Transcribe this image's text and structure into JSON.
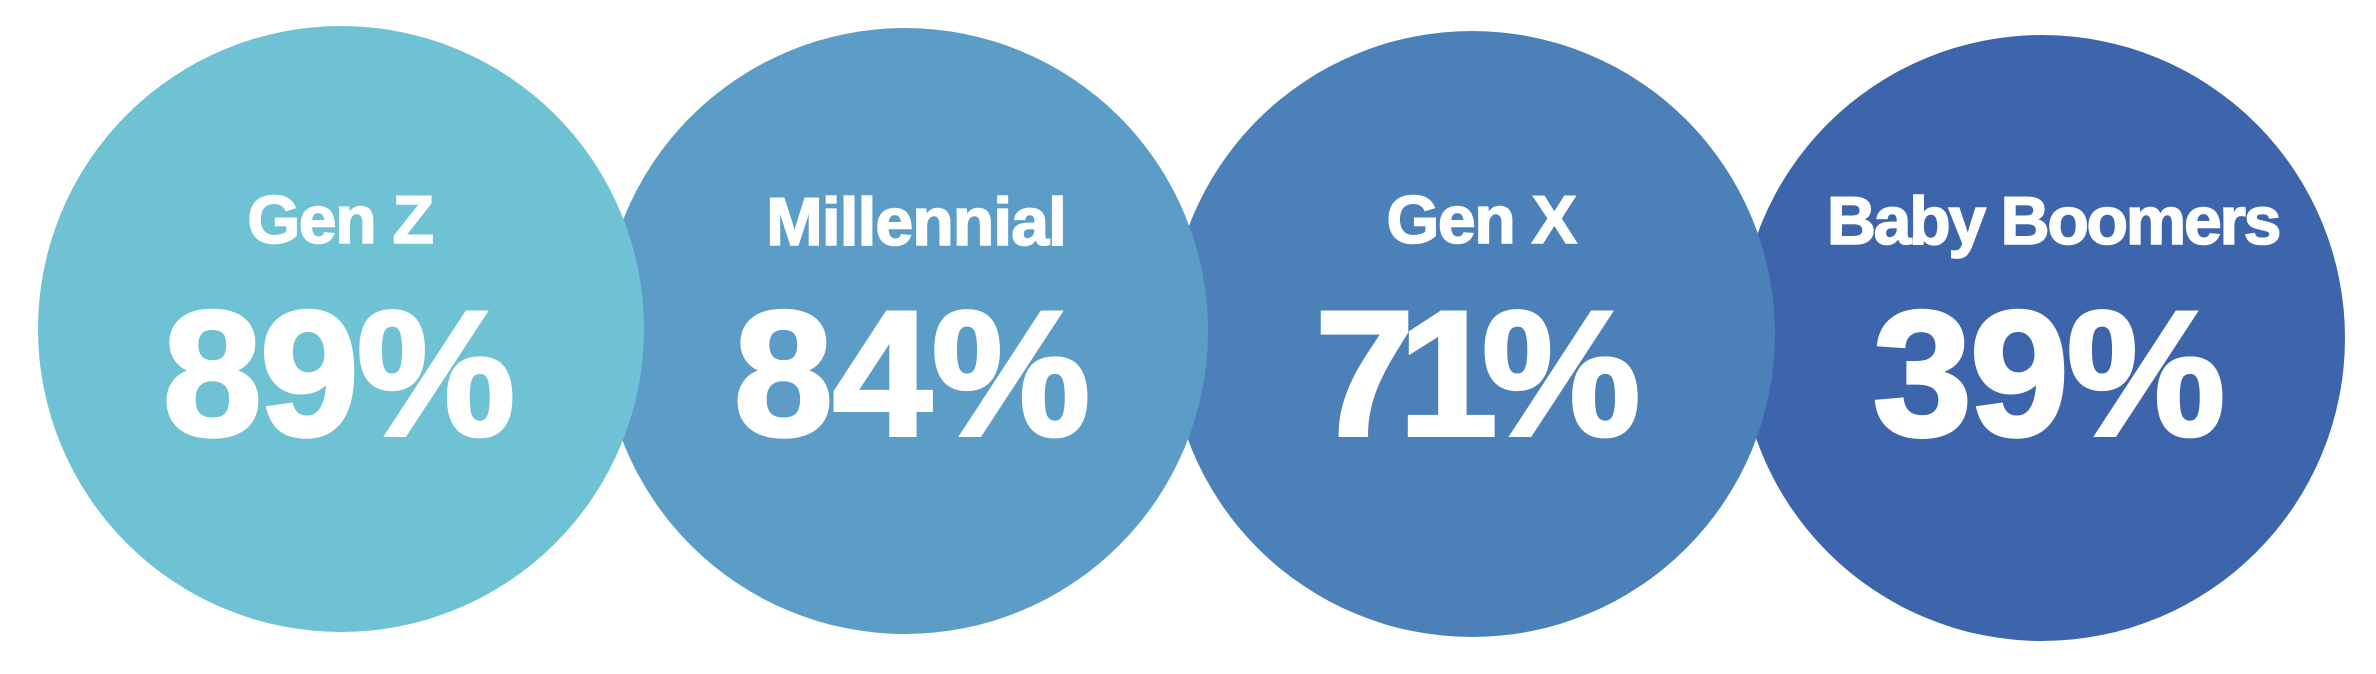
{
  "chart_data": {
    "type": "bar",
    "variant": "circle-infographic",
    "categories": [
      "Gen Z",
      "Millennial",
      "Gen X",
      "Baby Boomers"
    ],
    "values": [
      89,
      84,
      71,
      39
    ],
    "unit": "%",
    "value_labels": [
      "89%",
      "84%",
      "71%",
      "39%"
    ],
    "colors": [
      "#6fc2d3",
      "#5b9dc6",
      "#4b81b8",
      "#3c65ab"
    ],
    "background": "#ffffff",
    "text_color": "#ffffff",
    "legend": "none",
    "axes": "none"
  },
  "circles": [
    {
      "label": "Gen Z",
      "value": "89%",
      "color": "#6fc2d3"
    },
    {
      "label": "Millennial",
      "value": "84%",
      "color": "#5b9dc6"
    },
    {
      "label": "Gen X",
      "value": "71%",
      "color": "#4b81b8"
    },
    {
      "label": "Baby Boomers",
      "value": "39%",
      "color": "#3c65ab"
    }
  ]
}
